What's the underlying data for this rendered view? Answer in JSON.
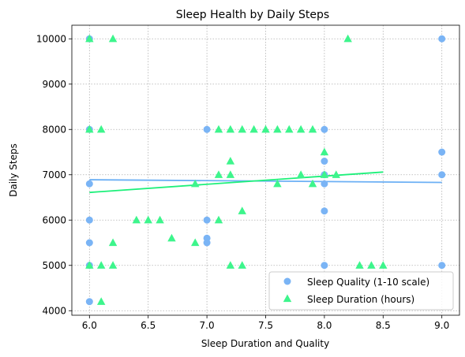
{
  "chart_data": {
    "type": "scatter",
    "title": "Sleep Health by Daily Steps",
    "xlabel": "Sleep Duration and Quality",
    "ylabel": "Daily Steps",
    "xlim": [
      5.85,
      9.15
    ],
    "ylim": [
      3900,
      10300
    ],
    "xticks": [
      "6.0",
      "6.5",
      "7.0",
      "7.5",
      "8.0",
      "8.5",
      "9.0"
    ],
    "xtick_values": [
      6.0,
      6.5,
      7.0,
      7.5,
      8.0,
      8.5,
      9.0
    ],
    "yticks": [
      "4000",
      "5000",
      "6000",
      "7000",
      "8000",
      "9000",
      "10000"
    ],
    "ytick_values": [
      4000,
      5000,
      6000,
      7000,
      8000,
      9000,
      10000
    ],
    "grid": true,
    "legend_position": "lower right",
    "series": [
      {
        "name": "Sleep Quality (1-10 scale)",
        "marker": "circle",
        "color": "#7ab4f5",
        "points": [
          [
            6,
            10000
          ],
          [
            6,
            8000
          ],
          [
            6,
            6800
          ],
          [
            6,
            6000
          ],
          [
            6,
            5500
          ],
          [
            6,
            5000
          ],
          [
            6,
            4200
          ],
          [
            7,
            8000
          ],
          [
            7,
            6000
          ],
          [
            7,
            5600
          ],
          [
            7,
            5500
          ],
          [
            8,
            8000
          ],
          [
            8,
            7300
          ],
          [
            8,
            7000
          ],
          [
            8,
            6800
          ],
          [
            8,
            6200
          ],
          [
            8,
            5000
          ],
          [
            9,
            10000
          ],
          [
            9,
            7500
          ],
          [
            9,
            7000
          ],
          [
            9,
            5000
          ]
        ],
        "trend": {
          "x": [
            6.0,
            9.0
          ],
          "y": [
            6890,
            6830
          ],
          "color": "#6cb0f5"
        }
      },
      {
        "name": "Sleep Duration (hours)",
        "marker": "triangle",
        "color": "#3df58c",
        "points": [
          [
            6.0,
            10000
          ],
          [
            6.2,
            10000
          ],
          [
            8.2,
            10000
          ],
          [
            6.0,
            8000
          ],
          [
            6.1,
            8000
          ],
          [
            7.1,
            8000
          ],
          [
            7.2,
            8000
          ],
          [
            7.3,
            8000
          ],
          [
            7.4,
            8000
          ],
          [
            7.5,
            8000
          ],
          [
            7.6,
            8000
          ],
          [
            7.7,
            8000
          ],
          [
            7.8,
            8000
          ],
          [
            7.9,
            8000
          ],
          [
            8.0,
            7500
          ],
          [
            7.2,
            7300
          ],
          [
            7.1,
            7000
          ],
          [
            7.2,
            7000
          ],
          [
            7.8,
            7000
          ],
          [
            8.0,
            7000
          ],
          [
            8.1,
            7000
          ],
          [
            6.9,
            6800
          ],
          [
            7.6,
            6800
          ],
          [
            7.9,
            6800
          ],
          [
            7.3,
            6200
          ],
          [
            6.4,
            6000
          ],
          [
            6.5,
            6000
          ],
          [
            6.6,
            6000
          ],
          [
            7.1,
            6000
          ],
          [
            6.7,
            5600
          ],
          [
            6.2,
            5500
          ],
          [
            6.9,
            5500
          ],
          [
            6.0,
            5000
          ],
          [
            6.1,
            5000
          ],
          [
            6.2,
            5000
          ],
          [
            7.2,
            5000
          ],
          [
            7.3,
            5000
          ],
          [
            8.3,
            5000
          ],
          [
            8.4,
            5000
          ],
          [
            8.5,
            5000
          ],
          [
            6.1,
            4200
          ]
        ],
        "trend": {
          "x": [
            6.0,
            8.5
          ],
          "y": [
            6610,
            7060
          ],
          "color": "#1df07a"
        }
      }
    ]
  }
}
